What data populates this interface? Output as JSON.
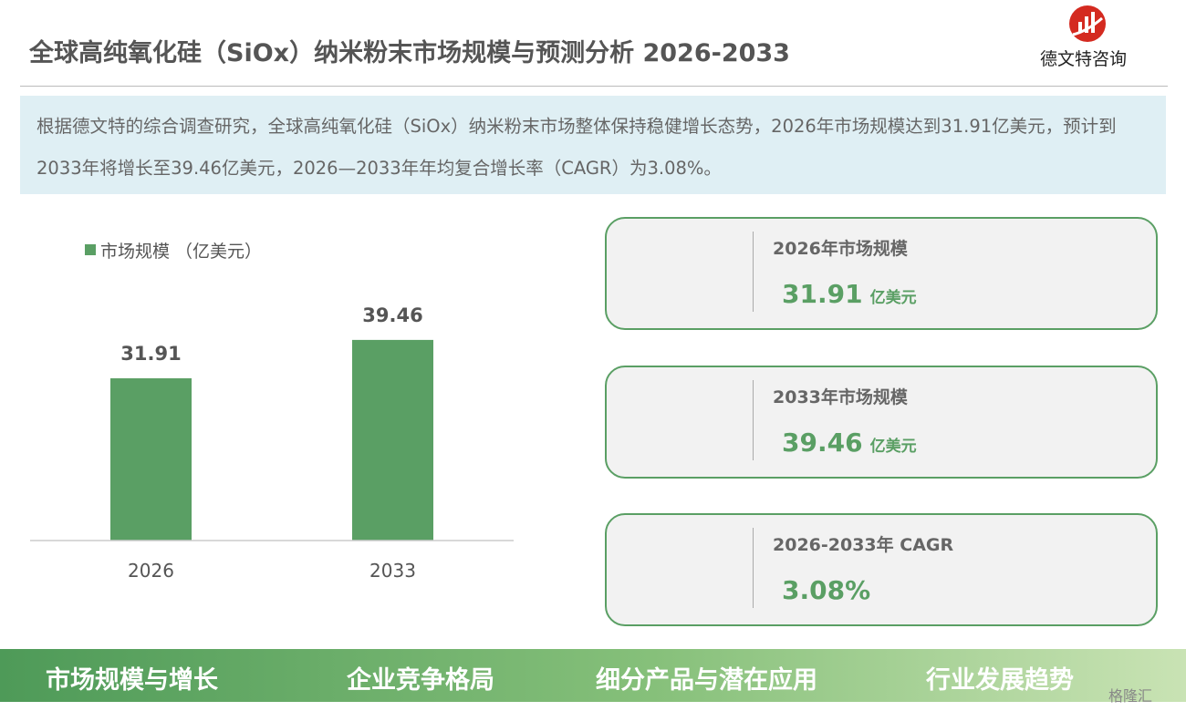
{
  "header": {
    "title": "全球高纯氧化硅（SiOx）纳米粉末市场规模与预测分析 2026-2033",
    "brand": "德文特咨询"
  },
  "summary": "根据德文特的综合调查研究，全球高纯氧化硅（SiOx）纳米粉末市场整体保持稳健增长态势，2026年市场规模达到31.91亿美元，预计到2033年将增长至39.46亿美元，2026—2033年年均复合增长率（CAGR）为3.08%。",
  "chart_data": {
    "type": "bar",
    "categories": [
      "2026",
      "2033"
    ],
    "series": [
      {
        "name": "市场规模 （亿美元）",
        "color": "#5a9f64",
        "values": [
          31.91,
          39.46
        ]
      }
    ],
    "ylim": [
      0,
      45
    ]
  },
  "cards": [
    {
      "label": "2026年市场规模",
      "value": "31.91",
      "unit": "亿美元"
    },
    {
      "label": "2033年市场规模",
      "value": "39.46",
      "unit": "亿美元"
    },
    {
      "label": "2026-2033年 CAGR",
      "value": "3.08%"
    }
  ],
  "footer": {
    "tabs": [
      "市场规模与增长",
      "企业竞争格局",
      "细分产品与潜在应用",
      "行业发展趋势"
    ],
    "watermark": "格隆汇"
  }
}
